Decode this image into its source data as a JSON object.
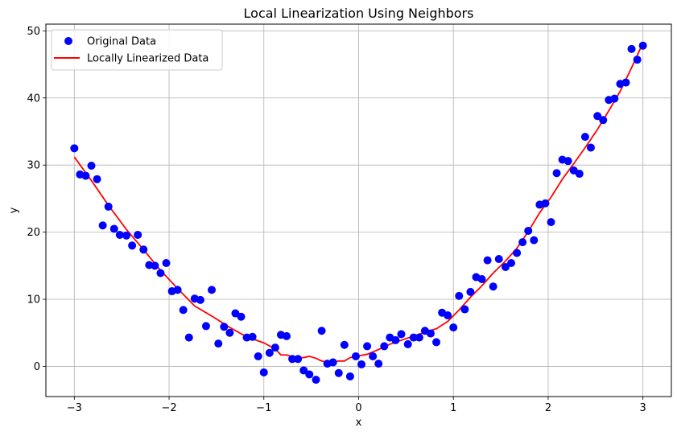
{
  "chart_data": {
    "type": "scatter",
    "title": "Local Linearization Using Neighbors",
    "xlabel": "x",
    "ylabel": "y",
    "xlim": [
      -3.3,
      3.3
    ],
    "ylim": [
      -4.5,
      51
    ],
    "xticks": [
      -3,
      -2,
      -1,
      0,
      1,
      2,
      3
    ],
    "yticks": [
      0,
      10,
      20,
      30,
      40,
      50
    ],
    "grid": true,
    "legend_position": "top-left",
    "colors": {
      "scatter": "#0000ff",
      "line": "#ff0000",
      "grid": "#b0b0b0"
    },
    "series": [
      {
        "name": "Original Data",
        "type": "scatter",
        "x": [
          -3.0,
          -2.94,
          -2.88,
          -2.82,
          -2.76,
          -2.7,
          -2.64,
          -2.58,
          -2.52,
          -2.45,
          -2.39,
          -2.33,
          -2.27,
          -2.21,
          -2.15,
          -2.09,
          -2.03,
          -1.97,
          -1.91,
          -1.85,
          -1.79,
          -1.73,
          -1.67,
          -1.61,
          -1.55,
          -1.48,
          -1.42,
          -1.36,
          -1.3,
          -1.24,
          -1.18,
          -1.12,
          -1.06,
          -1.0,
          -0.94,
          -0.88,
          -0.82,
          -0.76,
          -0.7,
          -0.64,
          -0.58,
          -0.52,
          -0.45,
          -0.39,
          -0.33,
          -0.27,
          -0.21,
          -0.15,
          -0.09,
          -0.03,
          0.03,
          0.09,
          0.15,
          0.21,
          0.27,
          0.33,
          0.39,
          0.45,
          0.52,
          0.58,
          0.64,
          0.7,
          0.76,
          0.82,
          0.88,
          0.94,
          1.0,
          1.06,
          1.12,
          1.18,
          1.24,
          1.3,
          1.36,
          1.42,
          1.48,
          1.55,
          1.61,
          1.67,
          1.73,
          1.79,
          1.85,
          1.91,
          1.97,
          2.03,
          2.09,
          2.15,
          2.21,
          2.27,
          2.33,
          2.39,
          2.45,
          2.52,
          2.58,
          2.64,
          2.7,
          2.76,
          2.82,
          2.88,
          2.94,
          3.0
        ],
        "y": [
          32.5,
          28.6,
          28.4,
          29.9,
          27.9,
          21.0,
          23.8,
          20.5,
          19.6,
          19.5,
          18.0,
          19.6,
          17.4,
          15.1,
          15.0,
          13.9,
          15.4,
          11.2,
          11.4,
          8.4,
          4.3,
          10.1,
          9.9,
          6.0,
          11.4,
          3.4,
          5.9,
          5.0,
          7.9,
          7.4,
          4.3,
          4.4,
          1.5,
          -0.9,
          2.0,
          2.8,
          4.7,
          4.5,
          1.1,
          1.1,
          -0.6,
          -1.2,
          -2.0,
          5.3,
          0.4,
          0.6,
          -1.0,
          3.2,
          -1.5,
          1.5,
          0.3,
          3.0,
          1.5,
          0.4,
          3.0,
          4.3,
          3.9,
          4.8,
          3.3,
          4.3,
          4.3,
          5.3,
          4.9,
          3.6,
          8.0,
          7.6,
          5.8,
          10.5,
          8.5,
          11.1,
          13.3,
          13.0,
          15.8,
          11.9,
          16.0,
          14.8,
          15.4,
          16.9,
          18.5,
          20.2,
          18.8,
          24.1,
          24.3,
          21.5,
          28.8,
          30.8,
          30.6,
          29.2,
          28.7,
          34.2,
          32.6,
          37.3,
          36.7,
          39.7,
          39.9,
          42.1,
          42.3,
          47.3,
          45.7,
          47.8
        ]
      },
      {
        "name": "Locally Linearized Data",
        "type": "line",
        "x": [
          -3.0,
          -2.82,
          -2.64,
          -2.45,
          -2.27,
          -2.09,
          -1.91,
          -1.73,
          -1.55,
          -1.36,
          -1.18,
          -1.0,
          -0.88,
          -0.82,
          -0.76,
          -0.7,
          -0.58,
          -0.52,
          -0.45,
          -0.39,
          -0.33,
          -0.27,
          -0.21,
          -0.15,
          -0.09,
          -0.03,
          0.09,
          0.21,
          0.33,
          0.45,
          0.58,
          0.7,
          0.82,
          0.94,
          1.06,
          1.18,
          1.3,
          1.42,
          1.55,
          1.67,
          1.79,
          1.91,
          2.03,
          2.15,
          2.27,
          2.39,
          2.52,
          2.64,
          2.76,
          2.88,
          3.0
        ],
        "y": [
          31.2,
          27.7,
          24.0,
          20.4,
          17.4,
          14.3,
          11.6,
          9.0,
          7.5,
          5.8,
          4.4,
          3.5,
          2.6,
          1.7,
          1.7,
          1.4,
          1.3,
          1.5,
          1.2,
          0.8,
          0.6,
          0.6,
          0.8,
          0.8,
          1.3,
          1.5,
          1.8,
          2.5,
          3.3,
          3.9,
          4.5,
          5.1,
          5.6,
          6.7,
          8.4,
          10.3,
          12.0,
          13.9,
          15.7,
          17.6,
          20.1,
          22.9,
          25.2,
          27.9,
          30.2,
          32.6,
          35.3,
          38.1,
          41.0,
          44.5,
          48.2
        ]
      }
    ]
  }
}
